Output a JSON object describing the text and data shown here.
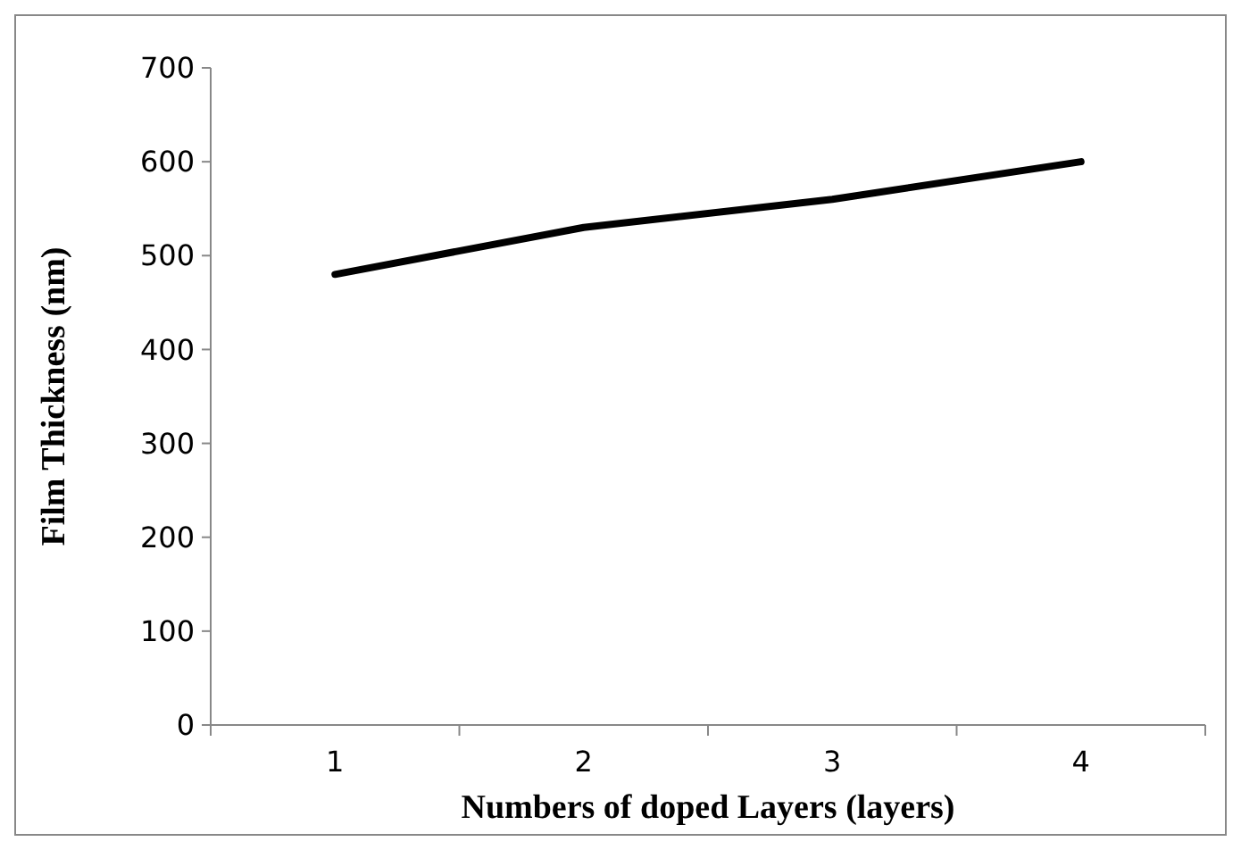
{
  "chart_data": {
    "type": "line",
    "xlabel": "Numbers of  doped Layers (layers)",
    "ylabel": "Film Thickness (nm)",
    "categories": [
      "1",
      "2",
      "3",
      "4"
    ],
    "series": [
      {
        "color": "#000000",
        "values": [
          480,
          530,
          560,
          600
        ]
      }
    ],
    "ylim": [
      0,
      700
    ],
    "yticks": [
      0,
      100,
      200,
      300,
      400,
      500,
      600,
      700
    ],
    "grid": false,
    "marker": "none",
    "line_style": "solid"
  }
}
